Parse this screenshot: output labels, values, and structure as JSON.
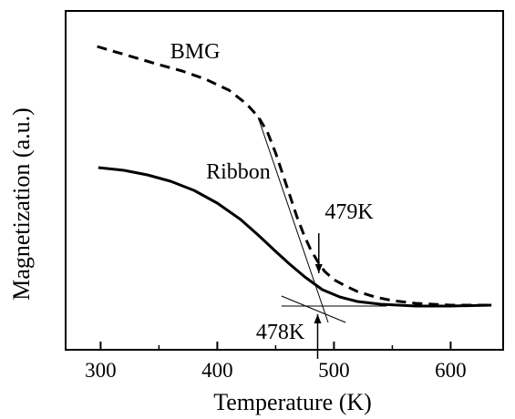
{
  "chart_data": {
    "type": "line",
    "xlabel": "Temperature (K)",
    "ylabel": "Magnetization (a.u.)",
    "xlim": [
      270,
      645
    ],
    "ylim": [
      0,
      1
    ],
    "yticks_labeled": false,
    "grid": false,
    "x_ticks": [
      300,
      400,
      500,
      600
    ],
    "x_minor_ticks": [
      350,
      450,
      550
    ],
    "series": [
      {
        "name": "BMG",
        "style": "dashed",
        "points": [
          [
            297,
            0.9406
          ],
          [
            310,
            0.925
          ],
          [
            330,
            0.9019
          ],
          [
            350,
            0.8781
          ],
          [
            370,
            0.8563
          ],
          [
            390,
            0.8281
          ],
          [
            410,
            0.7906
          ],
          [
            425,
            0.7438
          ],
          [
            435,
            0.7
          ],
          [
            443,
            0.6469
          ],
          [
            450,
            0.575
          ],
          [
            456,
            0.5031
          ],
          [
            462,
            0.4313
          ],
          [
            468,
            0.3594
          ],
          [
            474,
            0.2969
          ],
          [
            480,
            0.2438
          ],
          [
            486,
            0.2031
          ],
          [
            492,
            0.1688
          ],
          [
            500,
            0.1406
          ],
          [
            510,
            0.1188
          ],
          [
            520,
            0.1
          ],
          [
            535,
            0.0813
          ],
          [
            550,
            0.0688
          ],
          [
            570,
            0.0594
          ],
          [
            600,
            0.0531
          ],
          [
            635,
            0.0531
          ]
        ]
      },
      {
        "name": "Ribbon",
        "style": "solid",
        "points": [
          [
            298,
            0.525
          ],
          [
            320,
            0.5156
          ],
          [
            340,
            0.5
          ],
          [
            360,
            0.4781
          ],
          [
            380,
            0.4469
          ],
          [
            400,
            0.4031
          ],
          [
            420,
            0.3469
          ],
          [
            435,
            0.2938
          ],
          [
            450,
            0.2375
          ],
          [
            462,
            0.1938
          ],
          [
            475,
            0.15
          ],
          [
            490,
            0.1063
          ],
          [
            505,
            0.0813
          ],
          [
            520,
            0.0656
          ],
          [
            540,
            0.0563
          ],
          [
            570,
            0.05
          ],
          [
            600,
            0.05
          ],
          [
            635,
            0.0531
          ]
        ]
      }
    ],
    "tangent_lines": [
      {
        "x1": 435,
        "y1": 0.6969,
        "x2": 495,
        "y2": -0.0063
      },
      {
        "x1": 455,
        "y1": 0.0844,
        "x2": 510,
        "y2": -0.0063
      },
      {
        "x1": 455,
        "y1": 0.05,
        "x2": 545,
        "y2": 0.05
      }
    ],
    "annotations": [
      {
        "text": "BMG",
        "x": 381,
        "y": 0.9,
        "anchor": "middle"
      },
      {
        "text": "Ribbon",
        "x": 418,
        "y": 0.4875,
        "anchor": "middle"
      },
      {
        "text": "479K",
        "x": 513,
        "y": 0.35,
        "anchor": "middle",
        "arrow": {
          "x": 487,
          "y_from": 0.3,
          "y_to": 0.1625
        }
      },
      {
        "text": "478K",
        "x": 454,
        "y": -0.0625,
        "anchor": "middle",
        "arrow": {
          "x": 486,
          "y_from": -0.1312,
          "y_to": 0.0219
        }
      }
    ]
  }
}
